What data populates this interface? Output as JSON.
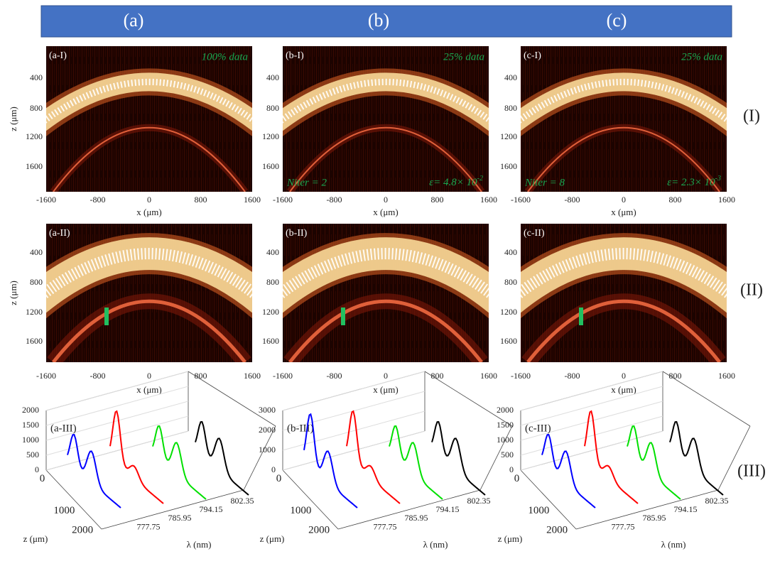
{
  "header": {
    "columns": [
      "(a)",
      "(b)",
      "(c)"
    ]
  },
  "row_labels": [
    "(I)",
    "(II)",
    "(III)"
  ],
  "image_axes": {
    "yticks": [
      "400",
      "800",
      "1200",
      "1600"
    ],
    "xticks": [
      "-1600",
      "-800",
      "0",
      "800",
      "1600"
    ],
    "xlabel": "x (μm)",
    "ylabel": "z (μm)"
  },
  "rows": [
    {
      "panels": [
        {
          "label": "(a-I)",
          "note": "100% data"
        },
        {
          "label": "(b-I)",
          "note": "25% data",
          "niter": "Niter = 2",
          "epsilon": {
            "base": "ε= 4.8× 10",
            "exp": "-2"
          }
        },
        {
          "label": "(c-I)",
          "note": "25% data",
          "niter": "Niter = 8",
          "epsilon": {
            "base": "ε= 2.3× 10",
            "exp": "-3"
          }
        }
      ]
    },
    {
      "panels": [
        {
          "label": "(a-II)"
        },
        {
          "label": "(b-II)"
        },
        {
          "label": "(c-II)"
        }
      ]
    }
  ],
  "spectra": {
    "panels": [
      {
        "label": "(a-III)",
        "zticks": [
          "0",
          "500",
          "1000",
          "1500",
          "2000"
        ]
      },
      {
        "label": "(b-III)",
        "zticks": [
          "0",
          "1000",
          "2000",
          "3000"
        ]
      },
      {
        "label": "(c-III)",
        "zticks": [
          "0",
          "500",
          "1000",
          "1500",
          "2000"
        ]
      }
    ],
    "depth_ticks": [
      "0",
      "1000",
      "2000"
    ],
    "lambda_ticks": [
      "777.75",
      "785.95",
      "794.15",
      "802.35"
    ],
    "depth_label": "z (μm)",
    "lambda_label": "λ (nm)"
  }
}
